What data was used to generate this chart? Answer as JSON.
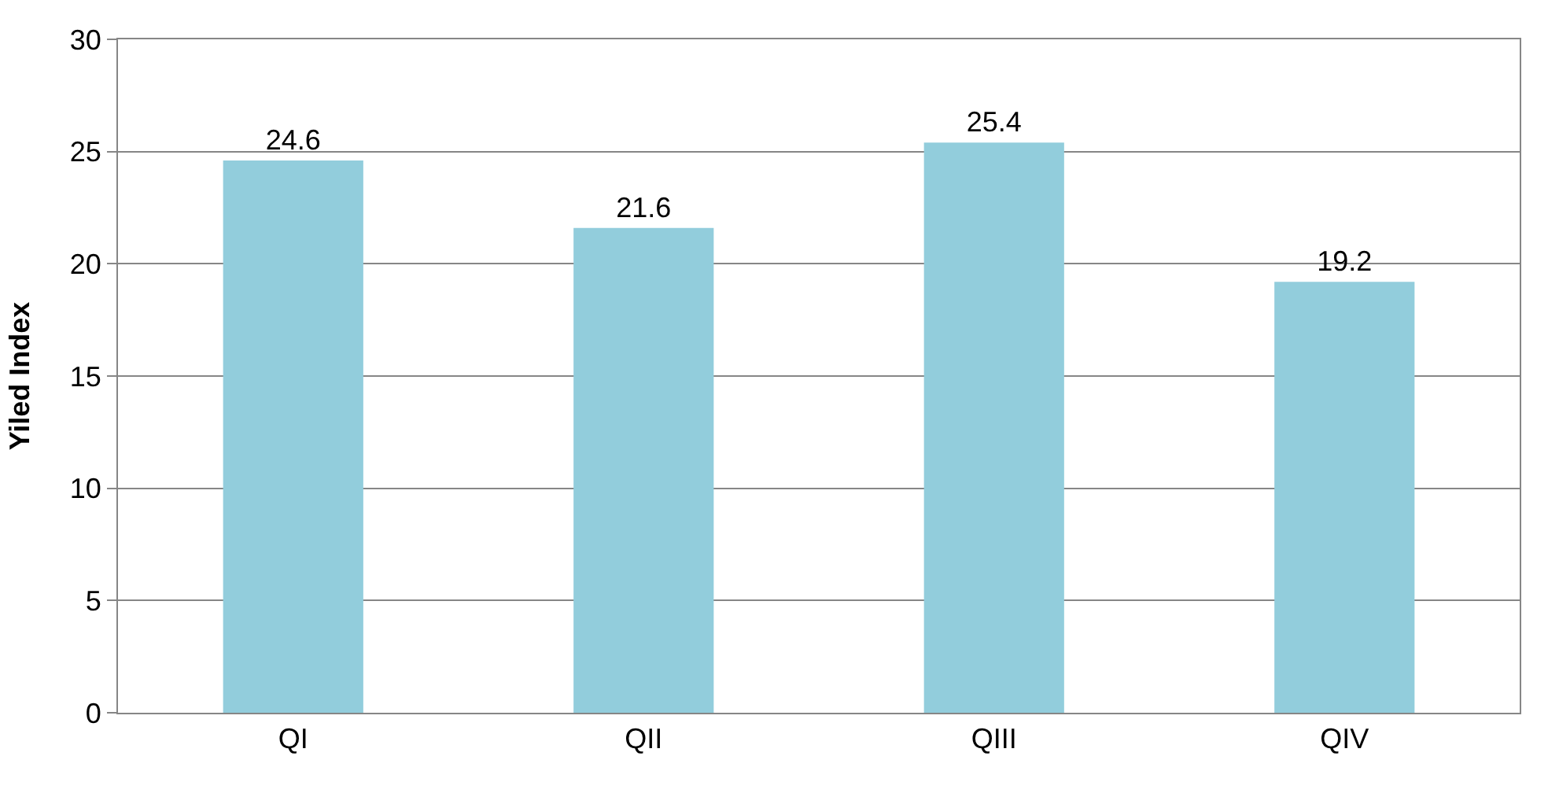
{
  "chart_data": {
    "type": "bar",
    "ylabel": "Yiled Index",
    "categories": [
      "QI",
      "QII",
      "QIII",
      "QIV"
    ],
    "values": [
      24.6,
      21.6,
      25.4,
      19.2
    ],
    "color": "#92cddc",
    "ylim": [
      0,
      30
    ],
    "yticks": [
      0,
      5,
      10,
      15,
      20,
      25,
      30
    ],
    "grid": "y",
    "data_labels": true
  }
}
